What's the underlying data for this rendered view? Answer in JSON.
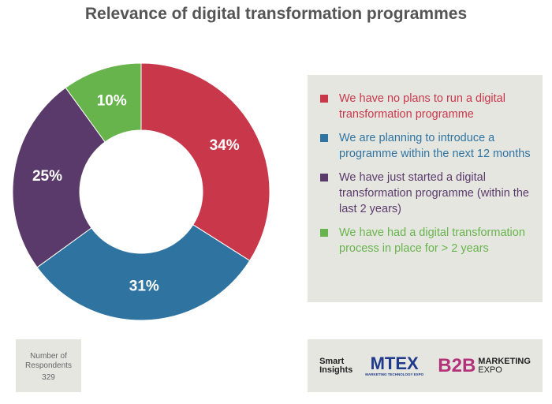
{
  "chart_data": {
    "type": "pie",
    "title": "Relevance of digital transformation programmes",
    "categories": [
      "We have no plans to run a digital transformation programme",
      "We are planning to introduce a programme within the next 12 months",
      "We have just started a digital transformation programme (within the last 2 years)",
      "We have had a digital transformation process in place for > 2 years"
    ],
    "values": [
      34,
      31,
      25,
      10
    ],
    "value_labels": [
      "34%",
      "31%",
      "25%",
      "10%"
    ],
    "colors": [
      "#c8374a",
      "#2f74a1",
      "#5a3a6a",
      "#68b44c"
    ],
    "respondents_label": "Number of Respondents",
    "respondents": 329,
    "logos": [
      "Smart Insights",
      "MTEX",
      "MARKETING TECHNOLOGY EXPO",
      "B2B",
      "MARKETING",
      "EXPO"
    ]
  }
}
